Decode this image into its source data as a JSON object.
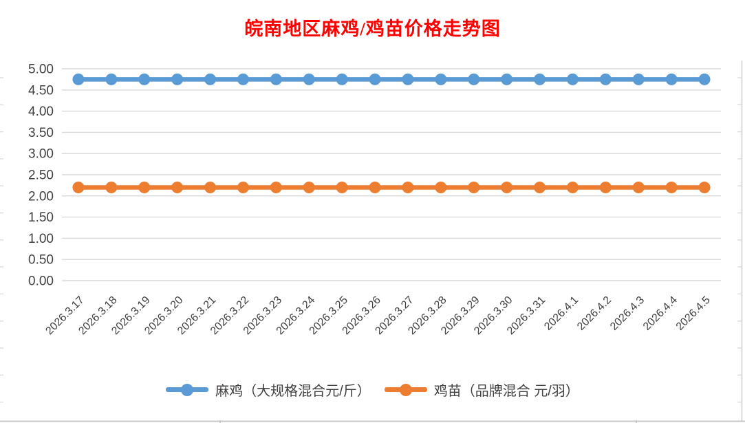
{
  "title": {
    "text": "皖南地区麻鸡/鸡苗价格走势图",
    "color": "#FF0000"
  },
  "chart_data": {
    "type": "line",
    "title": "皖南地区麻鸡/鸡苗价格走势图",
    "categories": [
      "2026.3.17",
      "2026.3.18",
      "2026.3.19",
      "2026.3.20",
      "2026.3.21",
      "2026.3.22",
      "2026.3.23",
      "2026.3.24",
      "2026.3.25",
      "2026.3.26",
      "2026.3.27",
      "2026.3.28",
      "2026.3.29",
      "2026.3.30",
      "2026.3.31",
      "2026.4.1",
      "2026.4.2",
      "2026.4.3",
      "2026.4.4",
      "2026.4.5"
    ],
    "series": [
      {
        "name": "麻鸡（大规格混合元/斤）",
        "color": "#5B9BD5",
        "values": [
          4.75,
          4.75,
          4.75,
          4.75,
          4.75,
          4.75,
          4.75,
          4.75,
          4.75,
          4.75,
          4.75,
          4.75,
          4.75,
          4.75,
          4.75,
          4.75,
          4.75,
          4.75,
          4.75,
          4.75
        ]
      },
      {
        "name": "鸡苗（品牌混合 元/羽）",
        "color": "#ED7D31",
        "values": [
          2.2,
          2.2,
          2.2,
          2.2,
          2.2,
          2.2,
          2.2,
          2.2,
          2.2,
          2.2,
          2.2,
          2.2,
          2.2,
          2.2,
          2.2,
          2.2,
          2.2,
          2.2,
          2.2,
          2.2
        ]
      }
    ],
    "xlabel": "",
    "ylabel": "",
    "ylim": [
      0,
      5
    ],
    "ytick_step": 0.5,
    "ytick_labels": [
      "0.00",
      "0.50",
      "1.00",
      "1.50",
      "2.00",
      "2.50",
      "3.00",
      "3.50",
      "4.00",
      "4.50",
      "5.00"
    ],
    "grid": true,
    "legend_position": "bottom",
    "axis_label_color": "#404040",
    "gridline_color": "#D9D9D9"
  }
}
